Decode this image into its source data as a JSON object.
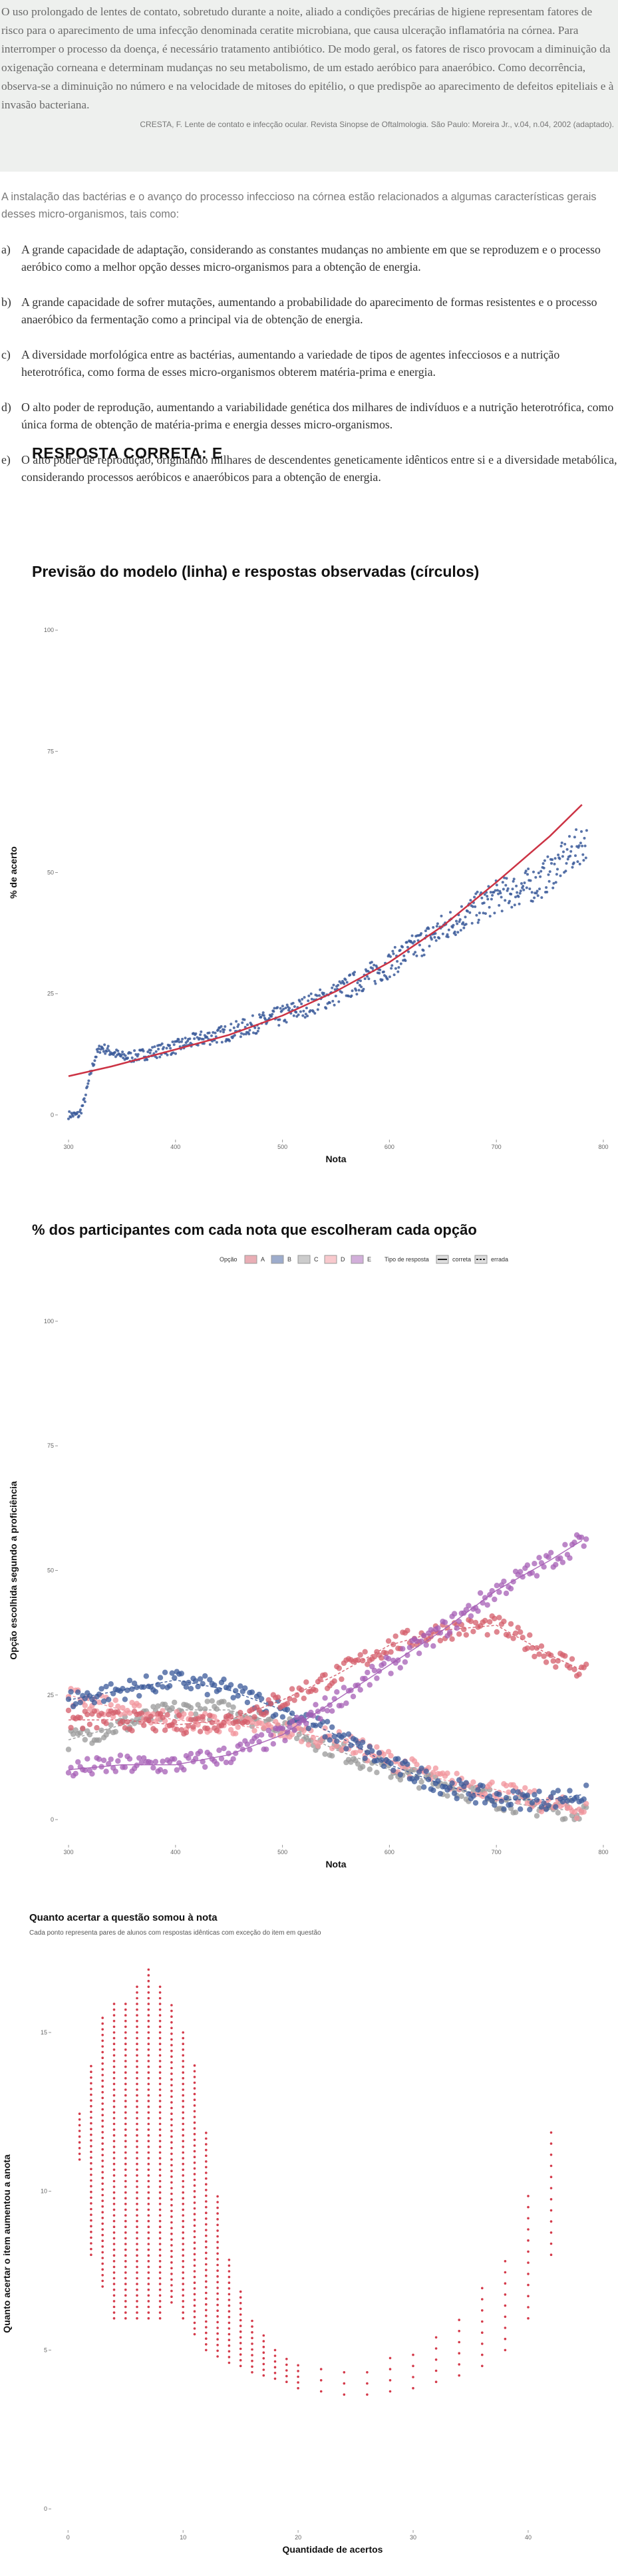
{
  "excerpt": {
    "text": "O uso prolongado de lentes de contato, sobretudo durante a noite, aliado a condições precárias de higiene representam fatores de risco para o aparecimento de uma infecção denominada ceratite microbiana, que causa ulceração inflamatória na córnea. Para interromper o processo da doença, é necessário tratamento antibiótico. De modo geral, os fatores de risco provocam a diminuição da oxigenação corneana e determinam mudanças no seu metabolismo, de um estado aeróbico para anaeróbico. Como decorrência, observa-se a diminuição no número e na velocidade de mitoses do epitélio, o que predispõe ao aparecimento de defeitos epiteliais e à invasão bacteriana.",
    "citation": "CRESTA, F. Lente de contato e infecção ocular. Revista Sinopse de Oftalmologia. São Paulo: Moreira Jr., v.04, n.04, 2002 (adaptado)."
  },
  "question": {
    "intro": "A instalação das bactérias e o avanço do processo infeccioso na córnea estão relacionados a algumas características gerais desses micro-organismos, tais como:",
    "options": [
      {
        "letter": "a)",
        "text": "A grande capacidade de adaptação, considerando as constantes mudanças no ambiente em que se reproduzem e o processo aeróbico como a melhor opção desses micro-organismos para a obtenção de energia."
      },
      {
        "letter": "b)",
        "text": "A grande capacidade de sofrer mutações, aumentando a probabilidade do aparecimento de formas resistentes e o processo anaeróbico da fermentação como a principal via de obtenção de energia."
      },
      {
        "letter": "c)",
        "text": "A diversidade morfológica entre as bactérias, aumentando a variedade de tipos de agentes infecciosos e a nutrição heterotrófica, como forma de esses micro-organismos obterem matéria-prima e energia."
      },
      {
        "letter": "d)",
        "text": "O alto poder de reprodução, aumentando a variabilidade genética dos milhares de indivíduos e a nutrição heterotrófica, como única forma de obtenção de matéria-prima e energia desses micro-organismos."
      },
      {
        "letter": "e)",
        "text": "O alto poder de reprodução, originando milhares de descendentes geneticamente idênticos entre si e a diversidade metabólica, considerando processos aeróbicos e anaeróbicos para a obtenção de energia."
      }
    ],
    "answer": "RESPOSTA CORRETA: E"
  },
  "colors": {
    "A": "#d45d6b",
    "B": "#3b5a9a",
    "C": "#9a9a9a",
    "D": "#f2949c",
    "E": "#a65fb5",
    "model_line": "#cc3344",
    "observed": "#3b5a9a",
    "chart3_points": "#d43a4a"
  },
  "chart_data": [
    {
      "type": "scatter",
      "title": "Previsão do modelo (linha) e respostas observadas (círculos)",
      "xlabel": "Nota",
      "ylabel": "% de acerto",
      "xlim": [
        295,
        805
      ],
      "ylim": [
        -4,
        104
      ],
      "xticks": [
        300,
        400,
        500,
        600,
        700,
        800
      ],
      "yticks": [
        0,
        25,
        50,
        75,
        100
      ],
      "grid": false,
      "model_curve": {
        "x": [
          300,
          340,
          400,
          450,
          500,
          550,
          600,
          650,
          700,
          750,
          780
        ],
        "y": [
          8,
          10,
          13.5,
          16.5,
          20.5,
          25.5,
          31.5,
          39,
          48,
          57.5,
          64
        ]
      },
      "observed": {
        "x": [
          300,
          310,
          315,
          320,
          325,
          330,
          340,
          350,
          360,
          380,
          400,
          420,
          450,
          500,
          550,
          600,
          650,
          700,
          740,
          760,
          780
        ],
        "y": [
          0,
          0,
          3,
          8,
          12,
          14,
          13,
          12,
          12,
          13,
          14,
          15.5,
          17,
          20.5,
          25,
          31,
          38.5,
          45,
          48,
          52,
          56
        ]
      }
    },
    {
      "type": "scatter",
      "title": "% dos participantes com cada nota que escolheram cada opção",
      "xlabel": "Nota",
      "ylabel": "Opção escolhida segundo a proficiência",
      "xlim": [
        295,
        805
      ],
      "ylim": [
        -4,
        104
      ],
      "xticks": [
        300,
        400,
        500,
        600,
        700,
        800
      ],
      "yticks": [
        0,
        25,
        50,
        75,
        100
      ],
      "grid": false,
      "legend": {
        "placement": "top",
        "option_label": "Opção",
        "options": [
          "A",
          "B",
          "C",
          "D",
          "E"
        ],
        "type_label": "Tipo de resposta",
        "types": [
          "correta",
          "errada"
        ]
      },
      "x": [
        300,
        350,
        400,
        450,
        500,
        550,
        600,
        650,
        700,
        750,
        780
      ],
      "series": [
        {
          "name": "A",
          "values": [
            20,
            20,
            19,
            20,
            24,
            29,
            35,
            38,
            39,
            33,
            30
          ]
        },
        {
          "name": "B",
          "values": [
            24,
            26,
            28,
            26,
            22,
            17,
            11,
            7,
            4,
            4,
            5
          ]
        },
        {
          "name": "C",
          "values": [
            16,
            19,
            22,
            22,
            19,
            14,
            10,
            7,
            4,
            2,
            2
          ]
        },
        {
          "name": "D",
          "values": [
            25,
            22,
            20,
            19,
            18,
            16,
            12,
            8,
            6,
            3,
            2
          ]
        },
        {
          "name": "E",
          "values": [
            10,
            11,
            11,
            13,
            17,
            24,
            31,
            38,
            46,
            52,
            56
          ]
        }
      ]
    },
    {
      "type": "scatter",
      "title": "Quanto acertar a questão somou à nota",
      "subtitle": "Cada ponto representa pares de alunos com respostas idênticas com exceção do item em questão",
      "xlabel": "Quantidade de acertos",
      "ylabel": "Quanto acertar o item aumentou a anota",
      "xlim": [
        -1,
        47
      ],
      "ylim": [
        -0.5,
        17.2
      ],
      "xticks": [
        0,
        10,
        20,
        30,
        40
      ],
      "yticks": [
        0,
        5,
        10,
        15
      ],
      "grid": false,
      "x": [
        1,
        2,
        3,
        4,
        5,
        6,
        7,
        8,
        9,
        10,
        11,
        12,
        13,
        14,
        15,
        16,
        17,
        18,
        19,
        20,
        22,
        24,
        26,
        28,
        30,
        32,
        34,
        36,
        38,
        40,
        42
      ],
      "upper": [
        12.5,
        14,
        15.5,
        16,
        16,
        16.5,
        17,
        16.5,
        16,
        15,
        14,
        12,
        10,
        8,
        7,
        6,
        5.5,
        5,
        4.8,
        4.6,
        4.5,
        4.5,
        4.6,
        4.8,
        5,
        5.5,
        6,
        7,
        8,
        10,
        12
      ],
      "lower": [
        11,
        8,
        7,
        6,
        6,
        6,
        6,
        6,
        6.5,
        6,
        5.5,
        5,
        4.8,
        4.6,
        4.5,
        4.3,
        4.2,
        4.1,
        4,
        3.8,
        3.7,
        3.6,
        3.6,
        3.7,
        3.8,
        4,
        4.2,
        4.5,
        5,
        6,
        8
      ]
    }
  ]
}
